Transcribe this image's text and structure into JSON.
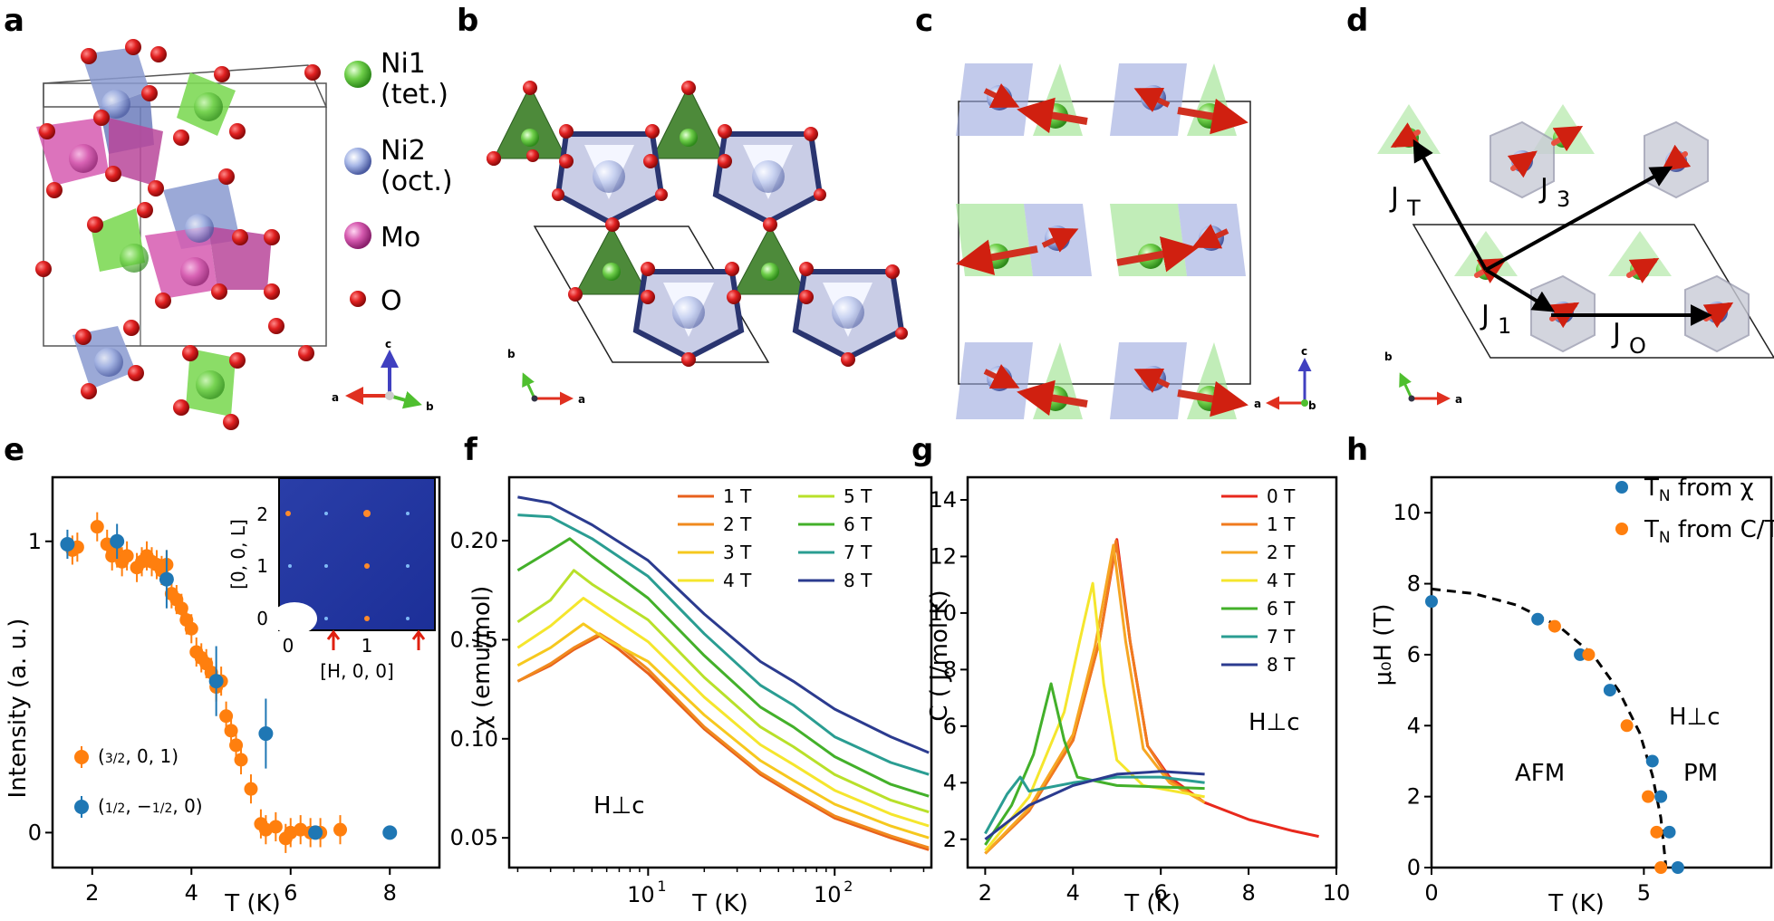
{
  "panels": {
    "a": {
      "label": "a",
      "legend": {
        "ni1": "Ni1",
        "ni1_sub": "(tet.)",
        "ni2": "Ni2",
        "ni2_sub": "(oct.)",
        "mo": "Mo",
        "o": "O"
      },
      "axes": {
        "x": "a",
        "y": "b",
        "z": "c"
      }
    },
    "b": {
      "label": "b",
      "axes": {
        "x": "a",
        "y": "b"
      }
    },
    "c": {
      "label": "c",
      "axes": {
        "x": "a",
        "y": "b",
        "z": "c"
      }
    },
    "d": {
      "label": "d",
      "axes": {
        "x": "a",
        "y": "b"
      },
      "couplings": {
        "jt": "J",
        "jt_sub": "T",
        "j3": "J",
        "j3_sub": "3",
        "j1": "J",
        "j1_sub": "1",
        "jo": "J",
        "jo_sub": "O"
      }
    },
    "e": {
      "label": "e",
      "ylabel": "Intensity (a. u.)",
      "xlabel": "T (K)",
      "inset": {
        "ylabel": "[0, 0, L]",
        "xlabel": "[H, 0, 0]",
        "xticks": [
          "0",
          "1"
        ],
        "yticks": [
          "0",
          "1",
          "2"
        ]
      }
    },
    "f": {
      "label": "f",
      "ylabel": "χ (emu/mol)",
      "xlabel": "T (K)",
      "annotation": "H⊥c"
    },
    "g": {
      "label": "g",
      "ylabel": "C ( J/mol K)",
      "xlabel": "T (K)",
      "annotation": "H⊥c"
    },
    "h": {
      "label": "h",
      "ylabel": "μ₀H (T)",
      "xlabel": "T (K)",
      "annotation": "H⊥c",
      "region_afm": "AFM",
      "region_pm": "PM"
    }
  },
  "colors": {
    "orange": "#ff7f0e",
    "blue": "#1f77b4",
    "ni1": "#7ed957",
    "ni2": "#8a9ad0",
    "mo": "#d65bb0",
    "o": "#d52020"
  },
  "chart_data": [
    {
      "id": "e",
      "type": "scatter",
      "xlabel": "T (K)",
      "ylabel": "Intensity (a. u.)",
      "xlim": [
        1.2,
        9.0
      ],
      "ylim": [
        -0.12,
        1.22
      ],
      "xticks": [
        2,
        4,
        6,
        8
      ],
      "yticks": [
        0,
        1
      ],
      "series": [
        {
          "name": "(3/2, 0, 1)",
          "color": "#ff7f0e",
          "x": [
            1.6,
            1.7,
            2.1,
            2.3,
            2.4,
            2.5,
            2.6,
            2.7,
            2.9,
            3.0,
            3.1,
            3.2,
            3.3,
            3.4,
            3.5,
            3.6,
            3.7,
            3.8,
            3.9,
            4.0,
            4.1,
            4.2,
            4.3,
            4.4,
            4.5,
            4.6,
            4.7,
            4.8,
            4.9,
            5.0,
            5.2,
            5.4,
            5.5,
            5.7,
            5.9,
            6.0,
            6.2,
            6.4,
            6.6,
            7.0
          ],
          "y": [
            0.97,
            0.98,
            1.05,
            0.99,
            0.95,
            0.96,
            0.93,
            0.95,
            0.91,
            0.93,
            0.95,
            0.93,
            0.92,
            0.9,
            0.92,
            0.82,
            0.8,
            0.77,
            0.73,
            0.7,
            0.62,
            0.6,
            0.58,
            0.55,
            0.5,
            0.52,
            0.4,
            0.35,
            0.3,
            0.25,
            0.15,
            0.03,
            0.01,
            0.02,
            -0.02,
            0.0,
            0.01,
            0.0,
            0.0,
            0.01
          ]
        },
        {
          "name": "(1/2, −1/2, 0)",
          "color": "#1f77b4",
          "x": [
            1.5,
            2.5,
            3.5,
            4.5,
            5.5,
            6.5,
            8.0
          ],
          "y": [
            0.99,
            1.0,
            0.87,
            0.52,
            0.34,
            0.0,
            0.0
          ]
        }
      ]
    },
    {
      "id": "f",
      "type": "line",
      "xscale": "log",
      "xlabel": "T (K)",
      "ylabel": "χ (emu/mol)",
      "xlim": [
        1.8,
        330
      ],
      "ylim": [
        0.035,
        0.232
      ],
      "xticklabels": [
        "10^1",
        "10^2"
      ],
      "yticks": [
        0.05,
        0.1,
        0.15,
        0.2
      ],
      "series": [
        {
          "name": "1 T",
          "color": "#e8601c",
          "points": [
            [
              2,
              0.129
            ],
            [
              3,
              0.137
            ],
            [
              4,
              0.145
            ],
            [
              5.5,
              0.152
            ],
            [
              7,
              0.145
            ],
            [
              10,
              0.133
            ],
            [
              20,
              0.105
            ],
            [
              40,
              0.082
            ],
            [
              60,
              0.072
            ],
            [
              100,
              0.06
            ],
            [
              200,
              0.05
            ],
            [
              320,
              0.044
            ]
          ]
        },
        {
          "name": "2 T",
          "color": "#f08a1e",
          "points": [
            [
              2,
              0.129
            ],
            [
              3,
              0.138
            ],
            [
              4,
              0.146
            ],
            [
              5.5,
              0.153
            ],
            [
              7,
              0.147
            ],
            [
              10,
              0.135
            ],
            [
              20,
              0.106
            ],
            [
              40,
              0.083
            ],
            [
              60,
              0.073
            ],
            [
              100,
              0.061
            ],
            [
              200,
              0.051
            ],
            [
              320,
              0.045
            ]
          ]
        },
        {
          "name": "3 T",
          "color": "#f6c81e",
          "points": [
            [
              2,
              0.137
            ],
            [
              3,
              0.146
            ],
            [
              4.5,
              0.158
            ],
            [
              6,
              0.15
            ],
            [
              10,
              0.139
            ],
            [
              20,
              0.112
            ],
            [
              40,
              0.089
            ],
            [
              60,
              0.079
            ],
            [
              100,
              0.067
            ],
            [
              200,
              0.056
            ],
            [
              320,
              0.05
            ]
          ]
        },
        {
          "name": "4 T",
          "color": "#f5e62d",
          "points": [
            [
              2,
              0.146
            ],
            [
              3,
              0.157
            ],
            [
              4.5,
              0.171
            ],
            [
              6,
              0.163
            ],
            [
              10,
              0.149
            ],
            [
              20,
              0.121
            ],
            [
              40,
              0.097
            ],
            [
              60,
              0.087
            ],
            [
              100,
              0.074
            ],
            [
              200,
              0.062
            ],
            [
              320,
              0.056
            ]
          ]
        },
        {
          "name": "5 T",
          "color": "#b8e02a",
          "points": [
            [
              2,
              0.159
            ],
            [
              3,
              0.17
            ],
            [
              4,
              0.185
            ],
            [
              5,
              0.178
            ],
            [
              10,
              0.16
            ],
            [
              20,
              0.131
            ],
            [
              40,
              0.106
            ],
            [
              60,
              0.096
            ],
            [
              100,
              0.082
            ],
            [
              200,
              0.069
            ],
            [
              320,
              0.063
            ]
          ]
        },
        {
          "name": "6 T",
          "color": "#43b02a",
          "points": [
            [
              2,
              0.185
            ],
            [
              3,
              0.195
            ],
            [
              3.8,
              0.201
            ],
            [
              5,
              0.192
            ],
            [
              10,
              0.171
            ],
            [
              20,
              0.142
            ],
            [
              40,
              0.116
            ],
            [
              60,
              0.106
            ],
            [
              100,
              0.091
            ],
            [
              200,
              0.077
            ],
            [
              320,
              0.071
            ]
          ]
        },
        {
          "name": "7 T",
          "color": "#2a9d92",
          "points": [
            [
              2,
              0.213
            ],
            [
              3,
              0.212
            ],
            [
              5,
              0.201
            ],
            [
              10,
              0.182
            ],
            [
              20,
              0.153
            ],
            [
              40,
              0.127
            ],
            [
              60,
              0.117
            ],
            [
              100,
              0.101
            ],
            [
              200,
              0.088
            ],
            [
              320,
              0.082
            ]
          ]
        },
        {
          "name": "8 T",
          "color": "#2b3b8f",
          "points": [
            [
              2,
              0.222
            ],
            [
              3,
              0.219
            ],
            [
              5,
              0.208
            ],
            [
              10,
              0.19
            ],
            [
              20,
              0.163
            ],
            [
              40,
              0.139
            ],
            [
              60,
              0.129
            ],
            [
              100,
              0.115
            ],
            [
              200,
              0.101
            ],
            [
              320,
              0.093
            ]
          ]
        }
      ]
    },
    {
      "id": "g",
      "type": "line",
      "xlabel": "T (K)",
      "ylabel": "C ( J/mol K)",
      "xlim": [
        1.6,
        10.0
      ],
      "ylim": [
        1.0,
        14.8
      ],
      "xticks": [
        2,
        4,
        6,
        8,
        10
      ],
      "yticks": [
        2,
        4,
        6,
        8,
        10,
        12,
        14
      ],
      "series": [
        {
          "name": "0 T",
          "color": "#e8281c",
          "points": [
            [
              2,
              1.5
            ],
            [
              3,
              3.0
            ],
            [
              4,
              5.5
            ],
            [
              4.6,
              9.0
            ],
            [
              5.0,
              12.6
            ],
            [
              5.3,
              9.0
            ],
            [
              5.7,
              5.3
            ],
            [
              6.2,
              4.2
            ],
            [
              7,
              3.3
            ],
            [
              8,
              2.7
            ],
            [
              9,
              2.3
            ],
            [
              9.6,
              2.1
            ]
          ]
        },
        {
          "name": "1 T",
          "color": "#f07a1e",
          "points": [
            [
              2,
              1.5
            ],
            [
              3,
              3.0
            ],
            [
              4,
              5.5
            ],
            [
              4.6,
              9.0
            ],
            [
              4.98,
              12.55
            ],
            [
              5.3,
              9.0
            ],
            [
              5.7,
              5.3
            ],
            [
              6.2,
              4.1
            ],
            [
              7,
              3.3
            ]
          ]
        },
        {
          "name": "2 T",
          "color": "#f6a623",
          "points": [
            [
              2,
              1.5
            ],
            [
              3,
              3.1
            ],
            [
              4,
              5.7
            ],
            [
              4.5,
              8.8
            ],
            [
              4.92,
              12.4
            ],
            [
              5.2,
              9.0
            ],
            [
              5.6,
              5.2
            ],
            [
              6.2,
              4.0
            ],
            [
              7,
              3.3
            ]
          ]
        },
        {
          "name": "4 T",
          "color": "#f5e62d",
          "points": [
            [
              2,
              1.6
            ],
            [
              3,
              3.5
            ],
            [
              3.8,
              6.5
            ],
            [
              4.15,
              9.0
            ],
            [
              4.45,
              11.05
            ],
            [
              4.7,
              7.5
            ],
            [
              5.0,
              4.8
            ],
            [
              5.6,
              3.9
            ],
            [
              7,
              3.5
            ]
          ]
        },
        {
          "name": "6 T",
          "color": "#43b02a",
          "points": [
            [
              2,
              1.8
            ],
            [
              2.6,
              3.2
            ],
            [
              3.1,
              5.0
            ],
            [
              3.5,
              7.5
            ],
            [
              3.8,
              5.5
            ],
            [
              4.1,
              4.2
            ],
            [
              5,
              3.9
            ],
            [
              7,
              3.8
            ]
          ]
        },
        {
          "name": "7 T",
          "color": "#2a9d92",
          "points": [
            [
              2,
              2.2
            ],
            [
              2.5,
              3.6
            ],
            [
              2.8,
              4.2
            ],
            [
              3.0,
              3.7
            ],
            [
              4,
              4.0
            ],
            [
              5,
              4.2
            ],
            [
              6,
              4.2
            ],
            [
              7,
              4.0
            ]
          ]
        },
        {
          "name": "8 T",
          "color": "#2b3b8f",
          "points": [
            [
              2,
              2.0
            ],
            [
              3,
              3.2
            ],
            [
              4,
              3.9
            ],
            [
              5,
              4.3
            ],
            [
              6,
              4.4
            ],
            [
              7,
              4.3
            ]
          ]
        }
      ]
    },
    {
      "id": "h",
      "type": "scatter",
      "xlabel": "T (K)",
      "ylabel": "μ₀H (T)",
      "xlim": [
        0,
        8.0
      ],
      "ylim": [
        0,
        11.0
      ],
      "xticks": [
        0,
        5
      ],
      "yticks": [
        0,
        2,
        4,
        6,
        8,
        10
      ],
      "series": [
        {
          "name": "T_N from χ",
          "color": "#1f77b4",
          "x": [
            0.0,
            2.5,
            3.5,
            4.2,
            5.2,
            5.4,
            5.6,
            5.8
          ],
          "y": [
            7.5,
            7.0,
            6.0,
            5.0,
            3.0,
            2.0,
            1.0,
            0.0
          ]
        },
        {
          "name": "T_N from C/T",
          "color": "#ff7f0e",
          "x": [
            2.9,
            3.7,
            4.6,
            5.1,
            5.3,
            5.4
          ],
          "y": [
            6.8,
            6.0,
            4.0,
            2.0,
            1.0,
            0.0
          ]
        },
        {
          "name": "fit",
          "style": "dashed",
          "color": "#000000",
          "x": [
            0.0,
            1.0,
            2.0,
            3.0,
            3.8,
            4.4,
            4.9,
            5.2,
            5.4,
            5.52
          ],
          "y": [
            7.85,
            7.72,
            7.4,
            6.8,
            6.0,
            5.0,
            3.8,
            2.6,
            1.4,
            0.0
          ]
        }
      ]
    }
  ]
}
